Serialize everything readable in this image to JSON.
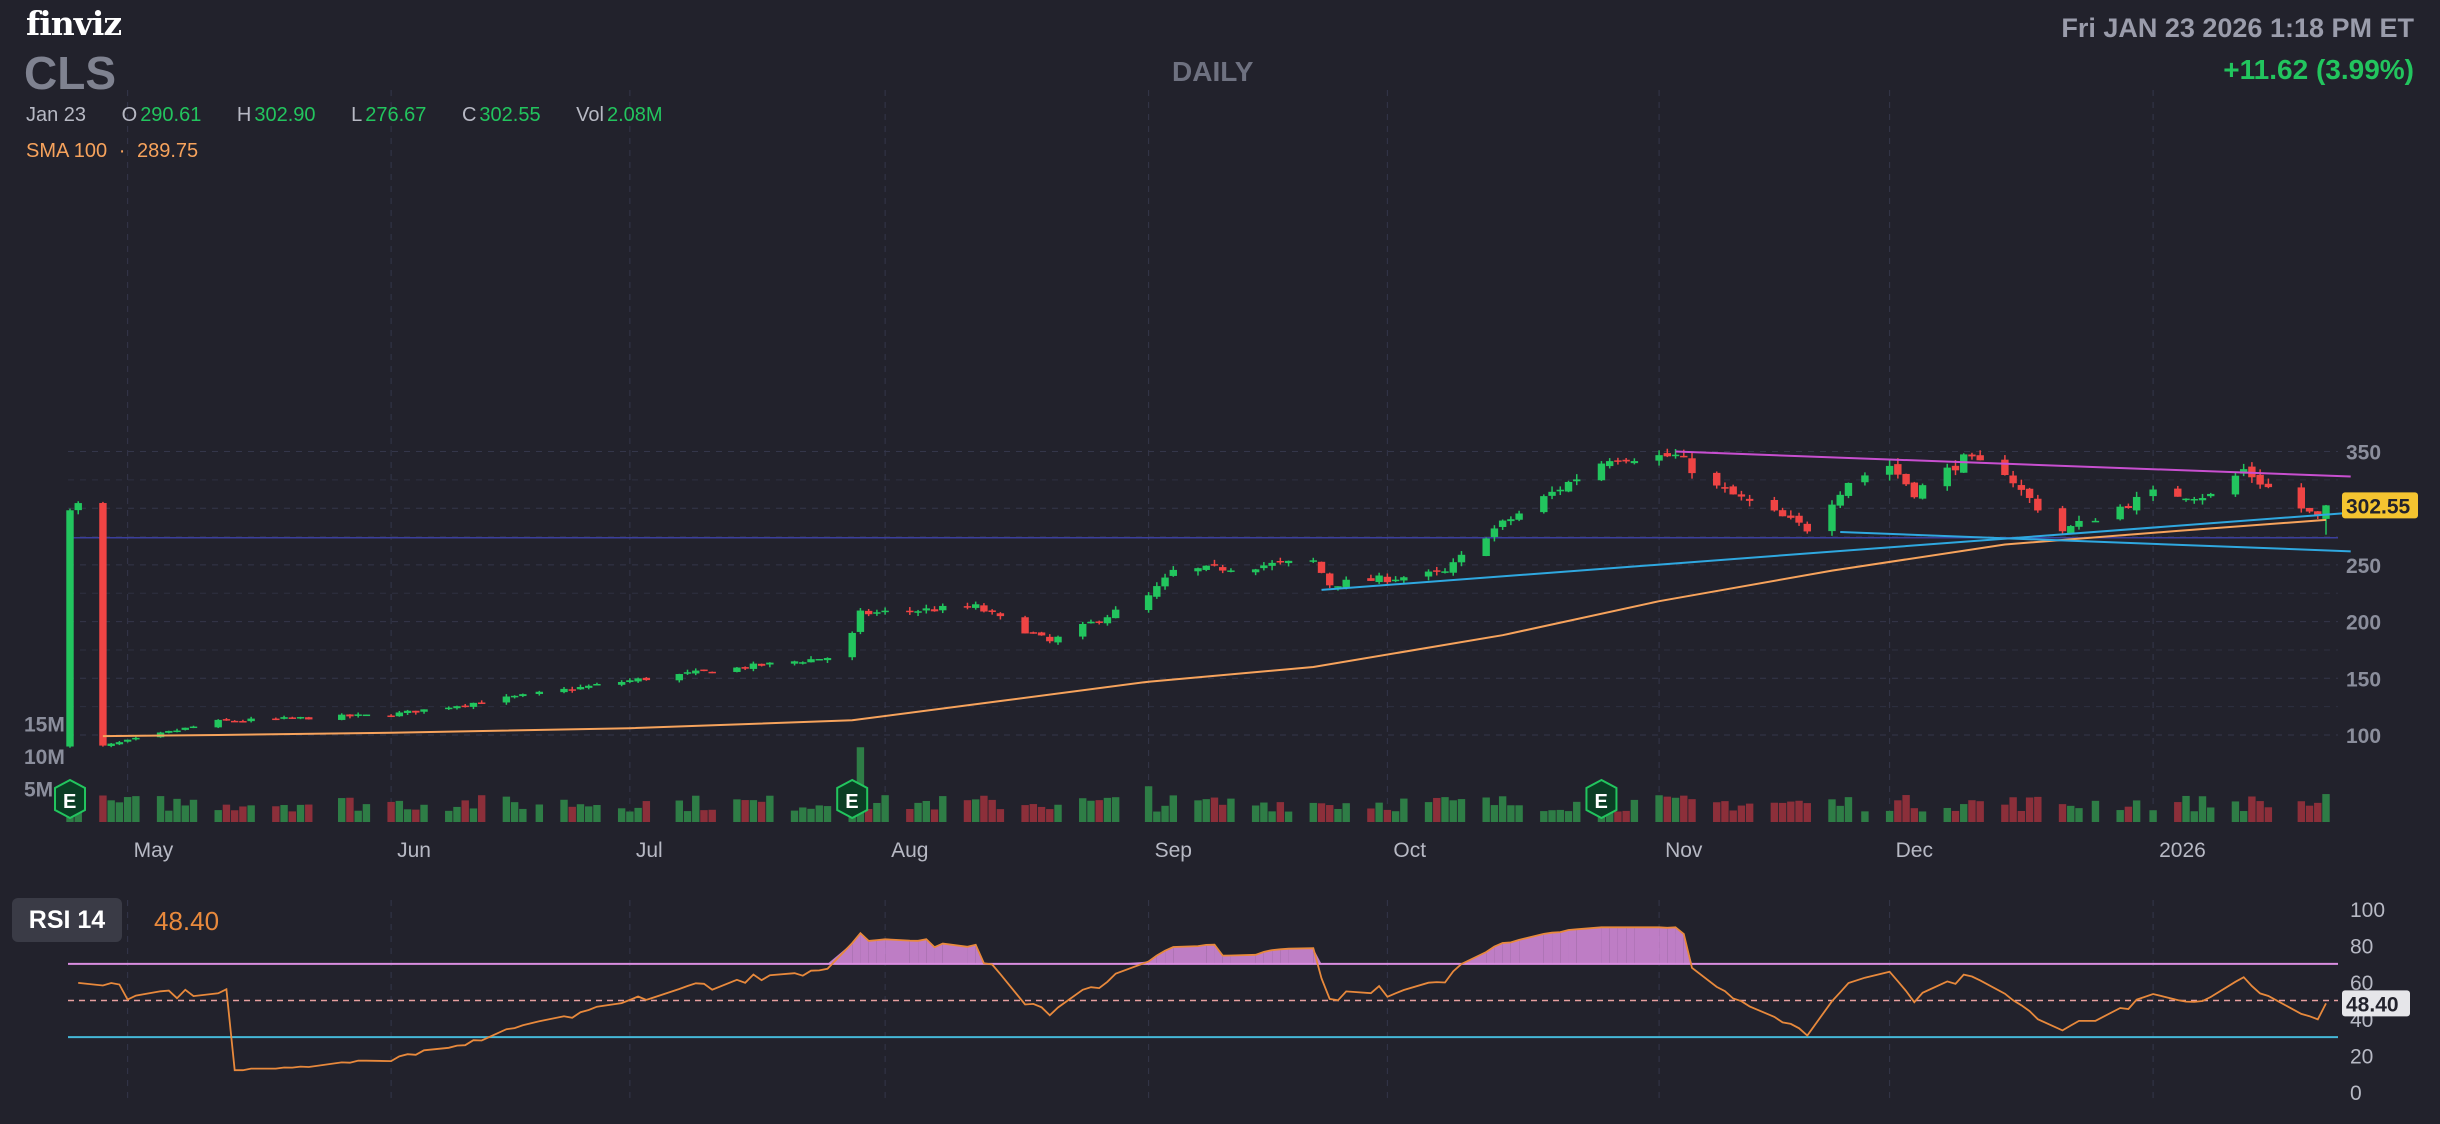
{
  "header": {
    "logo": "finviz",
    "ticker": "CLS",
    "timeframe": "DAILY",
    "datetime": "Fri JAN 23 2026 1:18 PM ET",
    "change": "+11.62 (3.99%)"
  },
  "ohlc": {
    "date": "Jan 23",
    "o_label": "O",
    "open": "290.61",
    "h_label": "H",
    "high": "302.90",
    "l_label": "L",
    "low": "276.67",
    "c_label": "C",
    "close": "302.55",
    "vol_label": "Vol",
    "volume": "2.08M"
  },
  "indicator": {
    "sma_label": "SMA 100",
    "sma_sep": "·",
    "sma_value": "289.75"
  },
  "rsi": {
    "label": "RSI 14",
    "value": "48.40"
  },
  "colors": {
    "up": "#22c55e",
    "down": "#ef4444",
    "sma": "#f7a35c",
    "rsi_line": "#e8893c",
    "trend_magenta": "#c84fd0",
    "trend_blue": "#2fa8e0",
    "background": "#22222c",
    "price_badge": "#f4c430"
  },
  "chart_data": [
    {
      "type": "candlestick",
      "title": "DAILY",
      "x_labels": [
        "May",
        "Jun",
        "Jul",
        "Aug",
        "Sep",
        "Oct",
        "Nov",
        "Dec",
        "2026"
      ],
      "y_ticks": [
        100,
        150,
        200,
        250,
        300,
        350
      ],
      "y_tick_labels": [
        "100",
        "150",
        "200",
        "250",
        "",
        "350"
      ],
      "ylim": [
        60,
        375
      ],
      "last_price": "302.55",
      "grid": true,
      "series": [
        {
          "name": "SMA 100",
          "points": [
            {
              "x": "2025-04-28",
              "y": 99
            },
            {
              "x": "2025-05-12",
              "y": 100
            },
            {
              "x": "2025-06-02",
              "y": 102
            },
            {
              "x": "2025-07-01",
              "y": 106
            },
            {
              "x": "2025-07-28",
              "y": 113
            },
            {
              "x": "2025-08-15",
              "y": 130
            },
            {
              "x": "2025-09-02",
              "y": 147
            },
            {
              "x": "2025-09-22",
              "y": 160
            },
            {
              "x": "2025-10-15",
              "y": 188
            },
            {
              "x": "2025-11-03",
              "y": 218
            },
            {
              "x": "2025-11-24",
              "y": 245
            },
            {
              "x": "2025-12-15",
              "y": 268
            },
            {
              "x": "2026-01-05",
              "y": 280
            },
            {
              "x": "2026-01-23",
              "y": 289.75
            }
          ]
        }
      ],
      "trendlines": [
        {
          "color": "magenta",
          "from": {
            "x": "2025-11-05",
            "y": 350
          },
          "to": {
            "x": "2026-01-26",
            "y": 328
          }
        },
        {
          "color": "blue",
          "from": {
            "x": "2025-09-23",
            "y": 228
          },
          "to": {
            "x": "2026-01-26",
            "y": 296
          }
        },
        {
          "color": "blue",
          "from": {
            "x": "2025-11-25",
            "y": 279
          },
          "to": {
            "x": "2026-01-26",
            "y": 262
          }
        }
      ],
      "horizontal_lines": [
        {
          "y": 274
        }
      ],
      "earnings_markers": [
        "2025-07-28",
        "2025-10-27"
      ],
      "anchor_candles": [
        {
          "date": "2025-04-28",
          "close": 90
        },
        {
          "date": "2025-05-12",
          "close": 112
        },
        {
          "date": "2025-06-02",
          "close": 118
        },
        {
          "date": "2025-07-01",
          "close": 148
        },
        {
          "date": "2025-07-27",
          "close": 170
        },
        {
          "date": "2025-07-29",
          "close": 207
        },
        {
          "date": "2025-08-12",
          "close": 213
        },
        {
          "date": "2025-08-21",
          "close": 182
        },
        {
          "date": "2025-09-02",
          "close": 222
        },
        {
          "date": "2025-09-05",
          "close": 244
        },
        {
          "date": "2025-09-22",
          "close": 253
        },
        {
          "date": "2025-09-24",
          "close": 233
        },
        {
          "date": "2025-10-08",
          "close": 243
        },
        {
          "date": "2025-10-13",
          "close": 277
        },
        {
          "date": "2025-10-22",
          "close": 318
        },
        {
          "date": "2025-10-28",
          "close": 345
        },
        {
          "date": "2025-11-05",
          "close": 346
        },
        {
          "date": "2025-11-10",
          "close": 318
        },
        {
          "date": "2025-11-21",
          "close": 282
        },
        {
          "date": "2025-11-26",
          "close": 324
        },
        {
          "date": "2025-12-01",
          "close": 338
        },
        {
          "date": "2025-12-04",
          "close": 314
        },
        {
          "date": "2025-12-10",
          "close": 343
        },
        {
          "date": "2025-12-15",
          "close": 333
        },
        {
          "date": "2025-12-17",
          "close": 315
        },
        {
          "date": "2025-12-22",
          "close": 280
        },
        {
          "date": "2026-01-02",
          "close": 313
        },
        {
          "date": "2026-01-09",
          "close": 311
        },
        {
          "date": "2026-01-13",
          "close": 334
        },
        {
          "date": "2026-01-16",
          "close": 318
        },
        {
          "date": "2026-01-22",
          "close": 290.93
        },
        {
          "date": "2026-01-23",
          "open": 290.61,
          "high": 302.9,
          "low": 276.67,
          "close": 302.55
        }
      ]
    },
    {
      "type": "bar",
      "title": "Volume",
      "y_tick_labels": [
        "15M",
        "10M",
        "5M"
      ],
      "y_ticks": [
        15,
        10,
        5
      ],
      "unit": "M",
      "last_volume": 2.08
    },
    {
      "type": "line",
      "title": "RSI 14",
      "ylim": [
        0,
        100
      ],
      "y_ticks": [
        100,
        80,
        60,
        40,
        20,
        0
      ],
      "overbought": 70,
      "oversold": 30,
      "mid": 50,
      "last": 48.4
    }
  ]
}
